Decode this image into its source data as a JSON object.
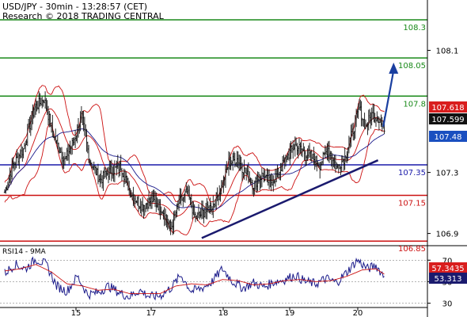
{
  "header": {
    "title": "USD/JPY - 30min - 13:28:57 (CET)",
    "credit": "Research © 2018 TRADING CENTRAL"
  },
  "rsi_title": "RSI14 - 9MA",
  "chart_data": [
    {
      "type": "candlestick",
      "title": "USD/JPY - 30min - 13:28:57 (CET)",
      "x_tick_labels": [
        "15",
        "17",
        "18",
        "19",
        "20"
      ],
      "y_tick_labels": [
        106.9,
        107.3,
        108.1
      ],
      "ylim": [
        106.82,
        108.43
      ],
      "grid": false,
      "levels": [
        {
          "value": 108.3,
          "label": "108.3",
          "color": "#1a8a1a"
        },
        {
          "value": 108.05,
          "label": "108.05",
          "color": "#1a8a1a"
        },
        {
          "value": 107.8,
          "label": "107.8",
          "color": "#1a8a1a"
        },
        {
          "value": 107.35,
          "label": "107.35",
          "color": "#1a1aaa"
        },
        {
          "value": 107.15,
          "label": "107.15",
          "color": "#cc1111"
        },
        {
          "value": 106.85,
          "label": "106.85",
          "color": "#cc1111"
        }
      ],
      "price_tags": [
        {
          "value": 107.618,
          "label": "107.618",
          "color": "#d91e1e"
        },
        {
          "value": 107.599,
          "label": "107.599",
          "color": "#111111"
        },
        {
          "value": 107.48,
          "label": "107.48",
          "color": "#1a4fc0"
        }
      ],
      "trendline": {
        "from": {
          "bar": 190,
          "price": 106.87
        },
        "to": {
          "bar": 360,
          "price": 107.38
        },
        "color": "#1a1a6e"
      },
      "forecast_arrow": {
        "from": {
          "bar": 365,
          "price": 107.6
        },
        "to": {
          "bar": 375,
          "price": 108.02
        },
        "color": "#1a3fa0"
      },
      "close_anchors": [
        {
          "bar": 0,
          "price": 107.17
        },
        {
          "bar": 8,
          "price": 107.35
        },
        {
          "bar": 18,
          "price": 107.45
        },
        {
          "bar": 28,
          "price": 107.72
        },
        {
          "bar": 38,
          "price": 107.78
        },
        {
          "bar": 48,
          "price": 107.52
        },
        {
          "bar": 58,
          "price": 107.38
        },
        {
          "bar": 66,
          "price": 107.5
        },
        {
          "bar": 74,
          "price": 107.66
        },
        {
          "bar": 82,
          "price": 107.38
        },
        {
          "bar": 92,
          "price": 107.25
        },
        {
          "bar": 102,
          "price": 107.31
        },
        {
          "bar": 112,
          "price": 107.34
        },
        {
          "bar": 122,
          "price": 107.16
        },
        {
          "bar": 132,
          "price": 107.08
        },
        {
          "bar": 142,
          "price": 107.12
        },
        {
          "bar": 152,
          "price": 107.06
        },
        {
          "bar": 160,
          "price": 106.93
        },
        {
          "bar": 168,
          "price": 107.1
        },
        {
          "bar": 176,
          "price": 107.17
        },
        {
          "bar": 184,
          "price": 107.0
        },
        {
          "bar": 192,
          "price": 107.04
        },
        {
          "bar": 200,
          "price": 107.08
        },
        {
          "bar": 208,
          "price": 107.18
        },
        {
          "bar": 216,
          "price": 107.36
        },
        {
          "bar": 224,
          "price": 107.39
        },
        {
          "bar": 232,
          "price": 107.3
        },
        {
          "bar": 240,
          "price": 107.22
        },
        {
          "bar": 248,
          "price": 107.28
        },
        {
          "bar": 256,
          "price": 107.23
        },
        {
          "bar": 264,
          "price": 107.3
        },
        {
          "bar": 272,
          "price": 107.4
        },
        {
          "bar": 280,
          "price": 107.48
        },
        {
          "bar": 288,
          "price": 107.44
        },
        {
          "bar": 296,
          "price": 107.4
        },
        {
          "bar": 304,
          "price": 107.35
        },
        {
          "bar": 312,
          "price": 107.46
        },
        {
          "bar": 320,
          "price": 107.33
        },
        {
          "bar": 328,
          "price": 107.4
        },
        {
          "bar": 336,
          "price": 107.58
        },
        {
          "bar": 342,
          "price": 107.72
        },
        {
          "bar": 348,
          "price": 107.6
        },
        {
          "bar": 354,
          "price": 107.68
        },
        {
          "bar": 360,
          "price": 107.66
        },
        {
          "bar": 364,
          "price": 107.6
        }
      ],
      "bollinger_width": 0.13
    },
    {
      "type": "line",
      "title": "RSI14 - 9MA",
      "y_tick_labels": [
        30,
        50,
        70
      ],
      "ylim": [
        26,
        82
      ],
      "guides": [
        30,
        50,
        70
      ],
      "series": [
        {
          "values": [
            {
              "bar": 0,
              "value": 58
            },
            {
              "bar": 10,
              "value": 66
            },
            {
              "bar": 20,
              "value": 62
            },
            {
              "bar": 30,
              "value": 71
            },
            {
              "bar": 40,
              "value": 66
            },
            {
              "bar": 50,
              "value": 46
            },
            {
              "bar": 60,
              "value": 41
            },
            {
              "bar": 70,
              "value": 55
            },
            {
              "bar": 80,
              "value": 38
            },
            {
              "bar": 90,
              "value": 40
            },
            {
              "bar": 100,
              "value": 46
            },
            {
              "bar": 110,
              "value": 40
            },
            {
              "bar": 120,
              "value": 36
            },
            {
              "bar": 130,
              "value": 42
            },
            {
              "bar": 140,
              "value": 36
            },
            {
              "bar": 150,
              "value": 37
            },
            {
              "bar": 160,
              "value": 44
            },
            {
              "bar": 170,
              "value": 56
            },
            {
              "bar": 180,
              "value": 41
            },
            {
              "bar": 190,
              "value": 44
            },
            {
              "bar": 200,
              "value": 50
            },
            {
              "bar": 210,
              "value": 62
            },
            {
              "bar": 220,
              "value": 50
            },
            {
              "bar": 230,
              "value": 44
            },
            {
              "bar": 240,
              "value": 49
            },
            {
              "bar": 250,
              "value": 45
            },
            {
              "bar": 260,
              "value": 50
            },
            {
              "bar": 270,
              "value": 52
            },
            {
              "bar": 280,
              "value": 56
            },
            {
              "bar": 290,
              "value": 50
            },
            {
              "bar": 300,
              "value": 48
            },
            {
              "bar": 310,
              "value": 53
            },
            {
              "bar": 320,
              "value": 49
            },
            {
              "bar": 330,
              "value": 59
            },
            {
              "bar": 340,
              "value": 70
            },
            {
              "bar": 350,
              "value": 62
            },
            {
              "bar": 358,
              "value": 65
            },
            {
              "bar": 366,
              "value": 55
            }
          ],
          "color": "#1a1a8a"
        },
        {
          "values": [
            {
              "bar": 0,
              "value": 60
            },
            {
              "bar": 15,
              "value": 62
            },
            {
              "bar": 30,
              "value": 66
            },
            {
              "bar": 45,
              "value": 59
            },
            {
              "bar": 60,
              "value": 48
            },
            {
              "bar": 75,
              "value": 46
            },
            {
              "bar": 90,
              "value": 42
            },
            {
              "bar": 105,
              "value": 43
            },
            {
              "bar": 120,
              "value": 39
            },
            {
              "bar": 135,
              "value": 39
            },
            {
              "bar": 150,
              "value": 39
            },
            {
              "bar": 165,
              "value": 46
            },
            {
              "bar": 180,
              "value": 48
            },
            {
              "bar": 195,
              "value": 47
            },
            {
              "bar": 210,
              "value": 52
            },
            {
              "bar": 225,
              "value": 51
            },
            {
              "bar": 240,
              "value": 47
            },
            {
              "bar": 255,
              "value": 48
            },
            {
              "bar": 270,
              "value": 51
            },
            {
              "bar": 285,
              "value": 52
            },
            {
              "bar": 300,
              "value": 50
            },
            {
              "bar": 315,
              "value": 51
            },
            {
              "bar": 330,
              "value": 55
            },
            {
              "bar": 345,
              "value": 61
            },
            {
              "bar": 358,
              "value": 62
            },
            {
              "bar": 366,
              "value": 57
            }
          ],
          "color": "#cc1111"
        }
      ],
      "value_tags": [
        {
          "value": 57.3435,
          "label": "57.3435",
          "color": "#d91e1e"
        },
        {
          "value": 53.313,
          "label": "53.313",
          "color": "#1a1a6e"
        }
      ]
    }
  ]
}
